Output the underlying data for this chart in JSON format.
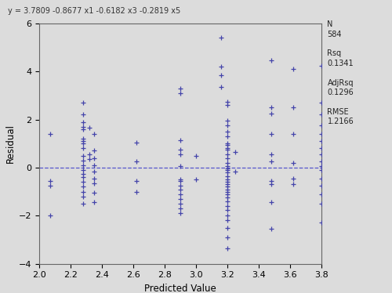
{
  "title": "y = 3.7809 -0.8677 x1 -0.6182 x3 -0.2819 x5",
  "xlabel": "Predicted Value",
  "ylabel": "Residual",
  "xlim": [
    2.0,
    3.8
  ],
  "ylim": [
    -4,
    6
  ],
  "xticks": [
    2.0,
    2.2,
    2.4,
    2.6,
    2.8,
    3.0,
    3.2,
    3.4,
    3.6,
    3.8
  ],
  "yticks": [
    -4,
    -2,
    0,
    2,
    4,
    6
  ],
  "stats_lines": [
    "N",
    "584",
    "",
    "Rsq",
    "0.1341",
    "",
    "AdjRsq",
    "0.1296",
    "",
    "RMSE",
    "1.2166"
  ],
  "marker_color": "#4444aa",
  "bg_color": "#dcdcdc",
  "dashed_color": "#5555cc",
  "points": [
    [
      2.07,
      1.4
    ],
    [
      2.07,
      -0.55
    ],
    [
      2.07,
      -0.75
    ],
    [
      2.07,
      -2.0
    ],
    [
      2.28,
      2.7
    ],
    [
      2.28,
      2.2
    ],
    [
      2.28,
      1.9
    ],
    [
      2.28,
      1.7
    ],
    [
      2.28,
      1.6
    ],
    [
      2.28,
      1.2
    ],
    [
      2.28,
      1.1
    ],
    [
      2.28,
      1.0
    ],
    [
      2.28,
      0.8
    ],
    [
      2.28,
      0.5
    ],
    [
      2.28,
      0.3
    ],
    [
      2.28,
      0.1
    ],
    [
      2.28,
      -0.1
    ],
    [
      2.28,
      -0.25
    ],
    [
      2.28,
      -0.4
    ],
    [
      2.28,
      -0.6
    ],
    [
      2.28,
      -0.8
    ],
    [
      2.28,
      -1.0
    ],
    [
      2.28,
      -1.2
    ],
    [
      2.28,
      -1.5
    ],
    [
      2.32,
      1.65
    ],
    [
      2.32,
      0.55
    ],
    [
      2.32,
      0.35
    ],
    [
      2.35,
      1.4
    ],
    [
      2.35,
      0.7
    ],
    [
      2.35,
      0.4
    ],
    [
      2.35,
      0.1
    ],
    [
      2.35,
      -0.15
    ],
    [
      2.35,
      -0.45
    ],
    [
      2.35,
      -0.65
    ],
    [
      2.35,
      -1.05
    ],
    [
      2.35,
      -1.45
    ],
    [
      2.62,
      1.05
    ],
    [
      2.62,
      0.25
    ],
    [
      2.62,
      -0.55
    ],
    [
      2.62,
      -1.0
    ],
    [
      2.9,
      3.3
    ],
    [
      2.9,
      3.1
    ],
    [
      2.9,
      1.15
    ],
    [
      2.9,
      0.75
    ],
    [
      2.9,
      0.55
    ],
    [
      2.9,
      0.05
    ],
    [
      2.9,
      -0.5
    ],
    [
      2.9,
      -0.55
    ],
    [
      2.9,
      -0.75
    ],
    [
      2.9,
      -0.9
    ],
    [
      2.9,
      -1.1
    ],
    [
      2.9,
      -1.3
    ],
    [
      2.9,
      -1.5
    ],
    [
      2.9,
      -1.7
    ],
    [
      2.9,
      -1.9
    ],
    [
      3.0,
      0.5
    ],
    [
      3.0,
      -0.5
    ],
    [
      3.16,
      5.4
    ],
    [
      3.16,
      4.2
    ],
    [
      3.16,
      3.85
    ],
    [
      3.16,
      3.35
    ],
    [
      3.2,
      2.75
    ],
    [
      3.2,
      2.6
    ],
    [
      3.2,
      1.95
    ],
    [
      3.2,
      1.75
    ],
    [
      3.2,
      1.5
    ],
    [
      3.2,
      1.3
    ],
    [
      3.2,
      1.0
    ],
    [
      3.2,
      0.95
    ],
    [
      3.2,
      0.8
    ],
    [
      3.2,
      0.75
    ],
    [
      3.2,
      0.55
    ],
    [
      3.2,
      0.4
    ],
    [
      3.2,
      0.2
    ],
    [
      3.2,
      0.05
    ],
    [
      3.2,
      -0.05
    ],
    [
      3.2,
      -0.1
    ],
    [
      3.2,
      -0.2
    ],
    [
      3.2,
      -0.35
    ],
    [
      3.2,
      -0.5
    ],
    [
      3.2,
      -0.6
    ],
    [
      3.2,
      -0.7
    ],
    [
      3.2,
      -0.8
    ],
    [
      3.2,
      -0.9
    ],
    [
      3.2,
      -1.0
    ],
    [
      3.2,
      -1.1
    ],
    [
      3.2,
      -1.25
    ],
    [
      3.2,
      -1.4
    ],
    [
      3.2,
      -1.6
    ],
    [
      3.2,
      -1.75
    ],
    [
      3.2,
      -2.0
    ],
    [
      3.2,
      -2.2
    ],
    [
      3.2,
      -2.5
    ],
    [
      3.2,
      -2.9
    ],
    [
      3.2,
      -3.35
    ],
    [
      3.25,
      0.65
    ],
    [
      3.25,
      -0.15
    ],
    [
      3.48,
      4.45
    ],
    [
      3.48,
      2.5
    ],
    [
      3.48,
      2.25
    ],
    [
      3.48,
      1.4
    ],
    [
      3.48,
      0.55
    ],
    [
      3.48,
      0.25
    ],
    [
      3.48,
      -0.55
    ],
    [
      3.48,
      -0.7
    ],
    [
      3.48,
      -1.45
    ],
    [
      3.48,
      -2.55
    ],
    [
      3.62,
      4.1
    ],
    [
      3.62,
      2.5
    ],
    [
      3.62,
      1.4
    ],
    [
      3.62,
      0.2
    ],
    [
      3.62,
      -0.45
    ],
    [
      3.62,
      -0.7
    ],
    [
      3.8,
      4.25
    ],
    [
      3.8,
      2.7
    ],
    [
      3.8,
      2.2
    ],
    [
      3.8,
      1.75
    ],
    [
      3.8,
      1.4
    ],
    [
      3.8,
      1.1
    ],
    [
      3.8,
      0.8
    ],
    [
      3.8,
      0.55
    ],
    [
      3.8,
      0.25
    ],
    [
      3.8,
      0.05
    ],
    [
      3.8,
      -0.1
    ],
    [
      3.8,
      -0.45
    ],
    [
      3.8,
      -0.75
    ],
    [
      3.8,
      -1.1
    ],
    [
      3.8,
      -1.5
    ],
    [
      3.8,
      -2.3
    ]
  ]
}
